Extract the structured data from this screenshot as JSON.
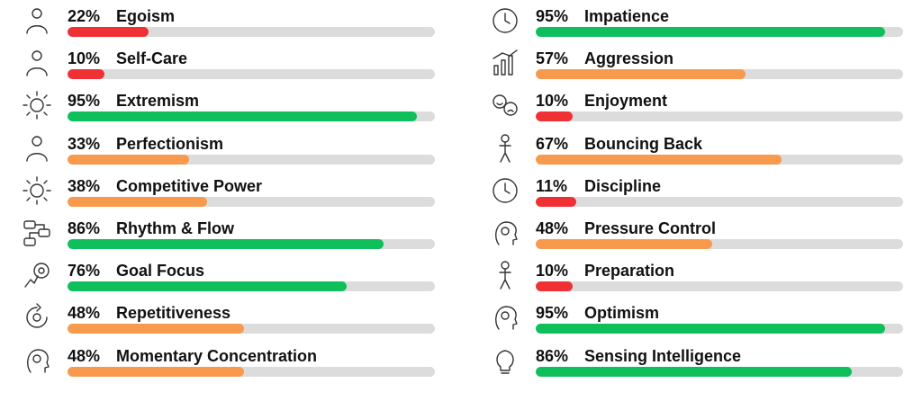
{
  "colors": {
    "low": "#ef3135",
    "mid": "#f79a4d",
    "high": "#0fbf5c",
    "track": "#dcdcdc"
  },
  "chart_data": {
    "type": "bar",
    "orientation": "horizontal",
    "value_unit": "%",
    "ylim": [
      0,
      100
    ],
    "left": [
      {
        "label": "Egoism",
        "value": 22,
        "level": "low",
        "icon": "egoism-icon"
      },
      {
        "label": "Self-Care",
        "value": 10,
        "level": "low",
        "icon": "self-care-icon"
      },
      {
        "label": "Extremism",
        "value": 95,
        "level": "high",
        "icon": "extremism-icon"
      },
      {
        "label": "Perfectionism",
        "value": 33,
        "level": "mid",
        "icon": "perfectionism-icon"
      },
      {
        "label": "Competitive Power",
        "value": 38,
        "level": "mid",
        "icon": "competitive-power-icon"
      },
      {
        "label": "Rhythm & Flow",
        "value": 86,
        "level": "high",
        "icon": "rhythm-flow-icon"
      },
      {
        "label": "Goal Focus",
        "value": 76,
        "level": "high",
        "icon": "goal-focus-icon"
      },
      {
        "label": "Repetitiveness",
        "value": 48,
        "level": "mid",
        "icon": "repetitiveness-icon"
      },
      {
        "label": "Momentary Concentration",
        "value": 48,
        "level": "mid",
        "icon": "concentration-icon"
      }
    ],
    "right": [
      {
        "label": "Impatience",
        "value": 95,
        "level": "high",
        "icon": "impatience-icon"
      },
      {
        "label": "Aggression",
        "value": 57,
        "level": "mid",
        "icon": "aggression-icon"
      },
      {
        "label": "Enjoyment",
        "value": 10,
        "level": "low",
        "icon": "enjoyment-icon"
      },
      {
        "label": "Bouncing Back",
        "value": 67,
        "level": "mid",
        "icon": "bouncing-back-icon"
      },
      {
        "label": "Discipline",
        "value": 11,
        "level": "low",
        "icon": "discipline-icon"
      },
      {
        "label": "Pressure Control",
        "value": 48,
        "level": "mid",
        "icon": "pressure-control-icon"
      },
      {
        "label": "Preparation",
        "value": 10,
        "level": "low",
        "icon": "preparation-icon"
      },
      {
        "label": "Optimism",
        "value": 95,
        "level": "high",
        "icon": "optimism-icon"
      },
      {
        "label": "Sensing Intelligence",
        "value": 86,
        "level": "high",
        "icon": "sensing-intelligence-icon"
      }
    ]
  }
}
